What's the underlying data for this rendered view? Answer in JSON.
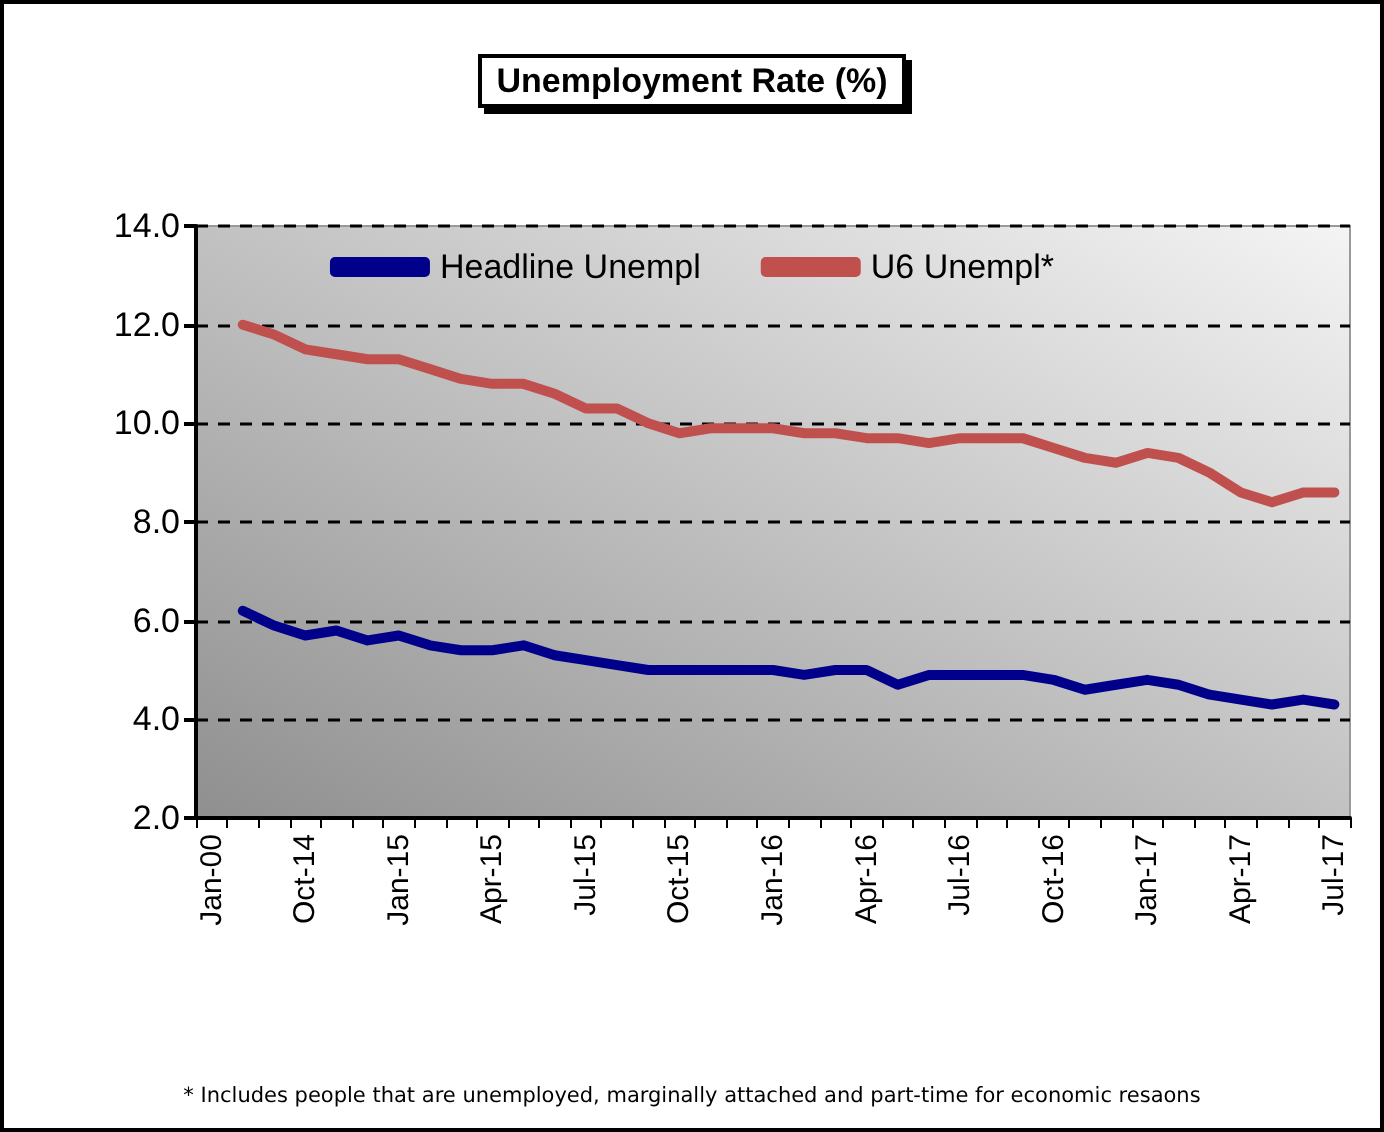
{
  "chart_data": {
    "type": "line",
    "title": "Unemployment Rate (%)",
    "categories": [
      "Jan-00",
      null,
      null,
      "Oct-14",
      null,
      null,
      "Jan-15",
      null,
      null,
      "Apr-15",
      null,
      null,
      "Jul-15",
      null,
      null,
      "Oct-15",
      null,
      null,
      "Jan-16",
      null,
      null,
      "Apr-16",
      null,
      null,
      "Jul-16",
      null,
      null,
      "Oct-16",
      null,
      null,
      "Jan-17",
      null,
      null,
      "Apr-17",
      null,
      null,
      "Jul-17"
    ],
    "series": [
      {
        "name": "Headline Unempl",
        "color": "#00008b",
        "values": [
          null,
          6.2,
          5.9,
          5.7,
          5.8,
          5.6,
          5.7,
          5.5,
          5.4,
          5.4,
          5.5,
          5.3,
          5.2,
          5.1,
          5.0,
          5.0,
          5.0,
          5.0,
          5.0,
          4.9,
          5.0,
          5.0,
          4.7,
          4.9,
          4.9,
          4.9,
          4.9,
          4.8,
          4.6,
          4.7,
          4.8,
          4.7,
          4.5,
          4.4,
          4.3,
          4.4,
          4.3
        ]
      },
      {
        "name": "U6 Unempl*",
        "color": "#c0504d",
        "values": [
          null,
          12.0,
          11.8,
          11.5,
          11.4,
          11.3,
          11.3,
          11.1,
          10.9,
          10.8,
          10.8,
          10.6,
          10.3,
          10.3,
          10.0,
          9.8,
          9.9,
          9.9,
          9.9,
          9.8,
          9.8,
          9.7,
          9.7,
          9.6,
          9.7,
          9.7,
          9.7,
          9.5,
          9.3,
          9.2,
          9.4,
          9.3,
          9.0,
          8.6,
          8.4,
          8.6,
          8.6
        ]
      }
    ],
    "ylim": [
      2,
      14
    ],
    "yticks": [
      {
        "value": 2,
        "label": "2.0"
      },
      {
        "value": 4,
        "label": "4.0"
      },
      {
        "value": 6,
        "label": "6.0"
      },
      {
        "value": 8,
        "label": "8.0"
      },
      {
        "value": 10,
        "label": "10.0"
      },
      {
        "value": 12,
        "label": "12.0"
      },
      {
        "value": 14,
        "label": "14.0"
      }
    ],
    "grid": "y",
    "legend": "top",
    "marker": "none",
    "line_style": "solid",
    "annotations": [
      "* Includes people that are unemployed, marginally attached and part-time for economic resaons"
    ]
  }
}
